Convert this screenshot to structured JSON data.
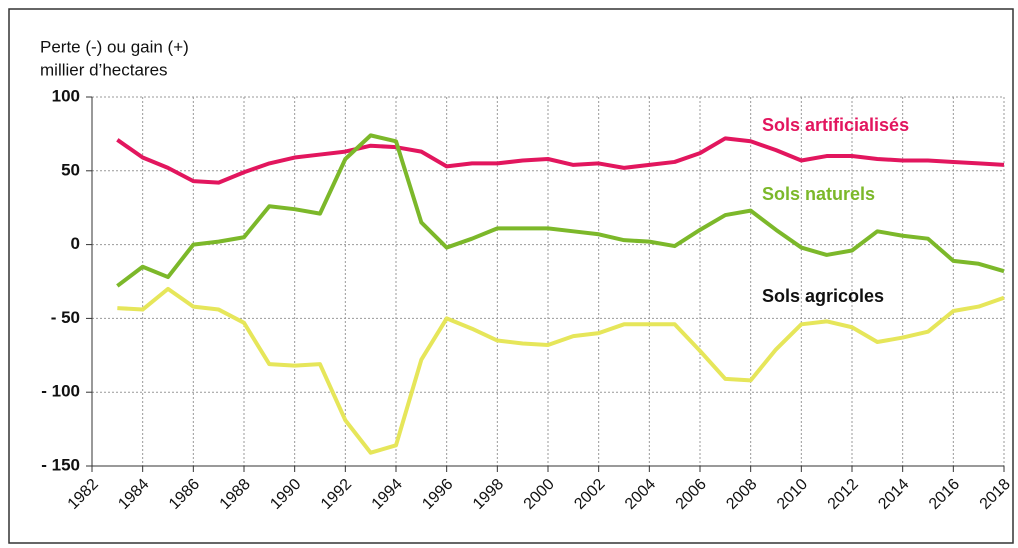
{
  "chart_data": {
    "type": "line",
    "y_label_lines": [
      "Perte (-) ou gain (+)",
      "millier d’hectares"
    ],
    "x": [
      1983,
      1984,
      1985,
      1986,
      1987,
      1988,
      1989,
      1990,
      1991,
      1992,
      1993,
      1994,
      1995,
      1996,
      1997,
      1998,
      1999,
      2000,
      2001,
      2002,
      2003,
      2004,
      2005,
      2006,
      2007,
      2008,
      2009,
      2010,
      2011,
      2012,
      2013,
      2014,
      2015,
      2016,
      2017,
      2018
    ],
    "series": [
      {
        "name": "Sols artificialisés",
        "color": "#e2165e",
        "label_color": "#e2165e",
        "values": [
          71,
          59,
          52,
          43,
          42,
          49,
          55,
          59,
          61,
          63,
          67,
          66,
          63,
          53,
          55,
          55,
          57,
          58,
          54,
          55,
          52,
          54,
          56,
          62,
          72,
          70,
          64,
          57,
          60,
          60,
          58,
          57,
          57,
          56,
          55,
          54
        ]
      },
      {
        "name": "Sols naturels",
        "color": "#7cb82a",
        "label_color": "#7cb82a",
        "values": [
          -28,
          -15,
          -22,
          0,
          2,
          5,
          26,
          24,
          21,
          58,
          74,
          70,
          15,
          -2,
          4,
          11,
          11,
          11,
          9,
          7,
          3,
          2,
          -1,
          10,
          20,
          23,
          10,
          -2,
          -7,
          -4,
          9,
          6,
          4,
          -11,
          -13,
          -18
        ]
      },
      {
        "name": "Sols agricoles",
        "color": "#e6e65a",
        "label_color": "#111111",
        "values": [
          -43,
          -44,
          -30,
          -42,
          -44,
          -53,
          -81,
          -82,
          -81,
          -119,
          -141,
          -136,
          -78,
          -50,
          -57,
          -65,
          -67,
          -68,
          -62,
          -60,
          -54,
          -54,
          -54,
          -72,
          -91,
          -92,
          -71,
          -54,
          -52,
          -56,
          -66,
          -63,
          -59,
          -45,
          -42,
          -36
        ]
      }
    ],
    "xlim": [
      1982,
      2018
    ],
    "xticks": [
      1982,
      1984,
      1986,
      1988,
      1990,
      1992,
      1994,
      1996,
      1998,
      2000,
      2002,
      2004,
      2006,
      2008,
      2010,
      2012,
      2014,
      2016,
      2018
    ],
    "ylim": [
      -150,
      100
    ],
    "yticks": [
      100,
      50,
      0,
      {
        "value": -50,
        "label": "- 50"
      },
      {
        "value": -100,
        "label": "- 100"
      },
      {
        "value": -150,
        "label": "- 150"
      }
    ],
    "grid": true
  }
}
